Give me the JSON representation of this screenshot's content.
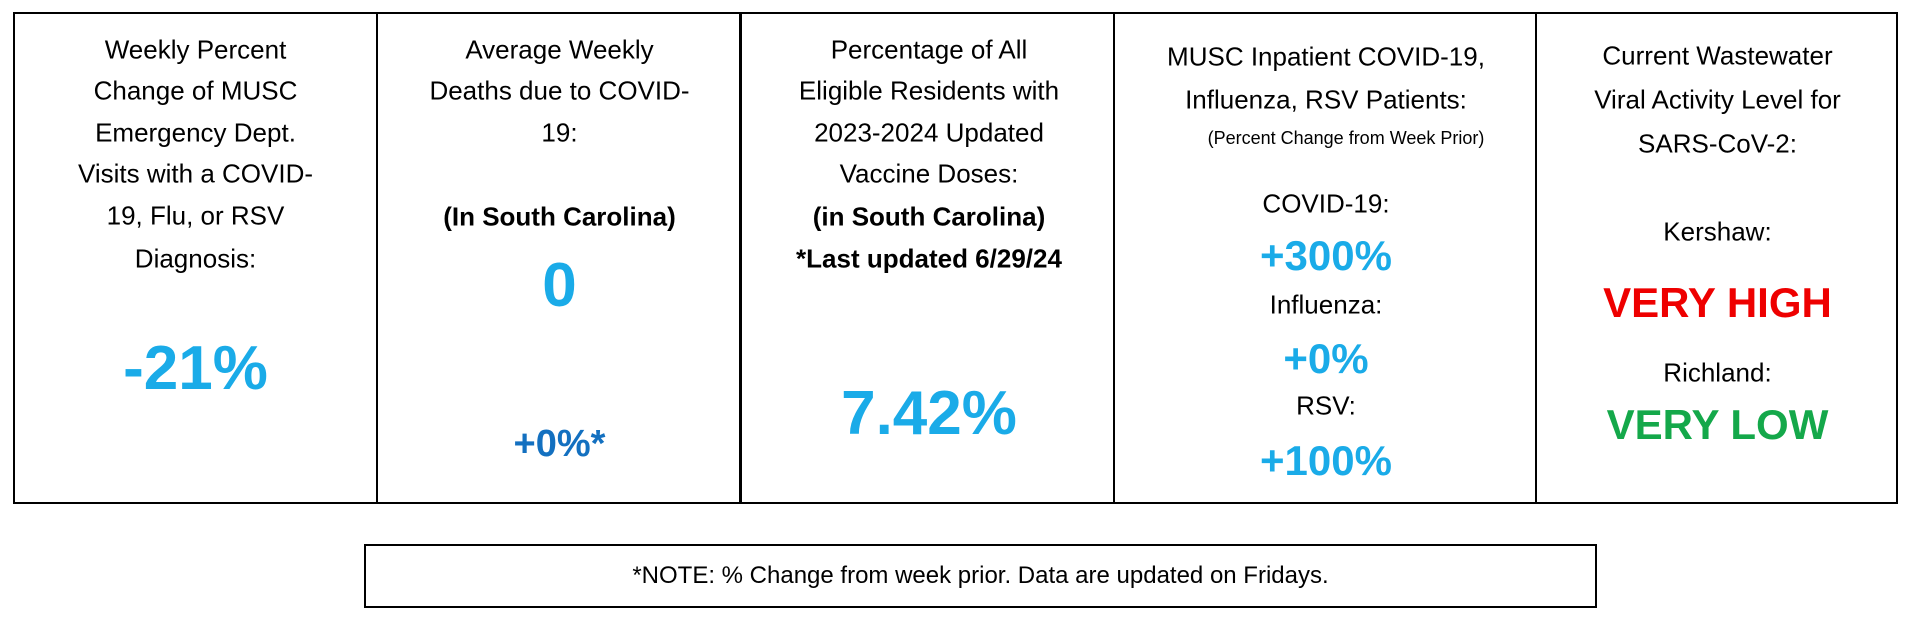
{
  "cells": [
    {
      "heading": [
        "Weekly Percent",
        "Change of MUSC",
        "Emergency Dept.",
        "Visits with a COVID-",
        "19, Flu, or RSV",
        "Diagnosis:"
      ],
      "value": "-21%"
    },
    {
      "heading": [
        "Average Weekly",
        "Deaths due to COVID-",
        "19:"
      ],
      "region": "(In South Carolina)",
      "value": "0",
      "change": "+0%*"
    },
    {
      "heading": [
        "Percentage of All",
        "Eligible Residents with",
        "2023-2024 Updated",
        "Vaccine Doses:"
      ],
      "region": "(in South Carolina)",
      "updated": "*Last updated 6/29/24",
      "value": "7.42%"
    },
    {
      "heading": [
        "MUSC Inpatient COVID-19,",
        "Influenza, RSV Patients:"
      ],
      "subheading": "(Percent Change from Week Prior)",
      "items": [
        {
          "label": "COVID-19:",
          "value": "+300%"
        },
        {
          "label": "Influenza:",
          "value": "+0%"
        },
        {
          "label": "RSV:",
          "value": "+100%"
        }
      ]
    },
    {
      "heading": [
        "Current Wastewater",
        "Viral Activity Level for",
        "SARS-CoV-2:"
      ],
      "items": [
        {
          "label": "Kershaw:",
          "value": "VERY HIGH"
        },
        {
          "label": "Richland:",
          "value": "VERY LOW"
        }
      ]
    }
  ],
  "note": "*NOTE: % Change from week prior. Data are updated on Fridays."
}
